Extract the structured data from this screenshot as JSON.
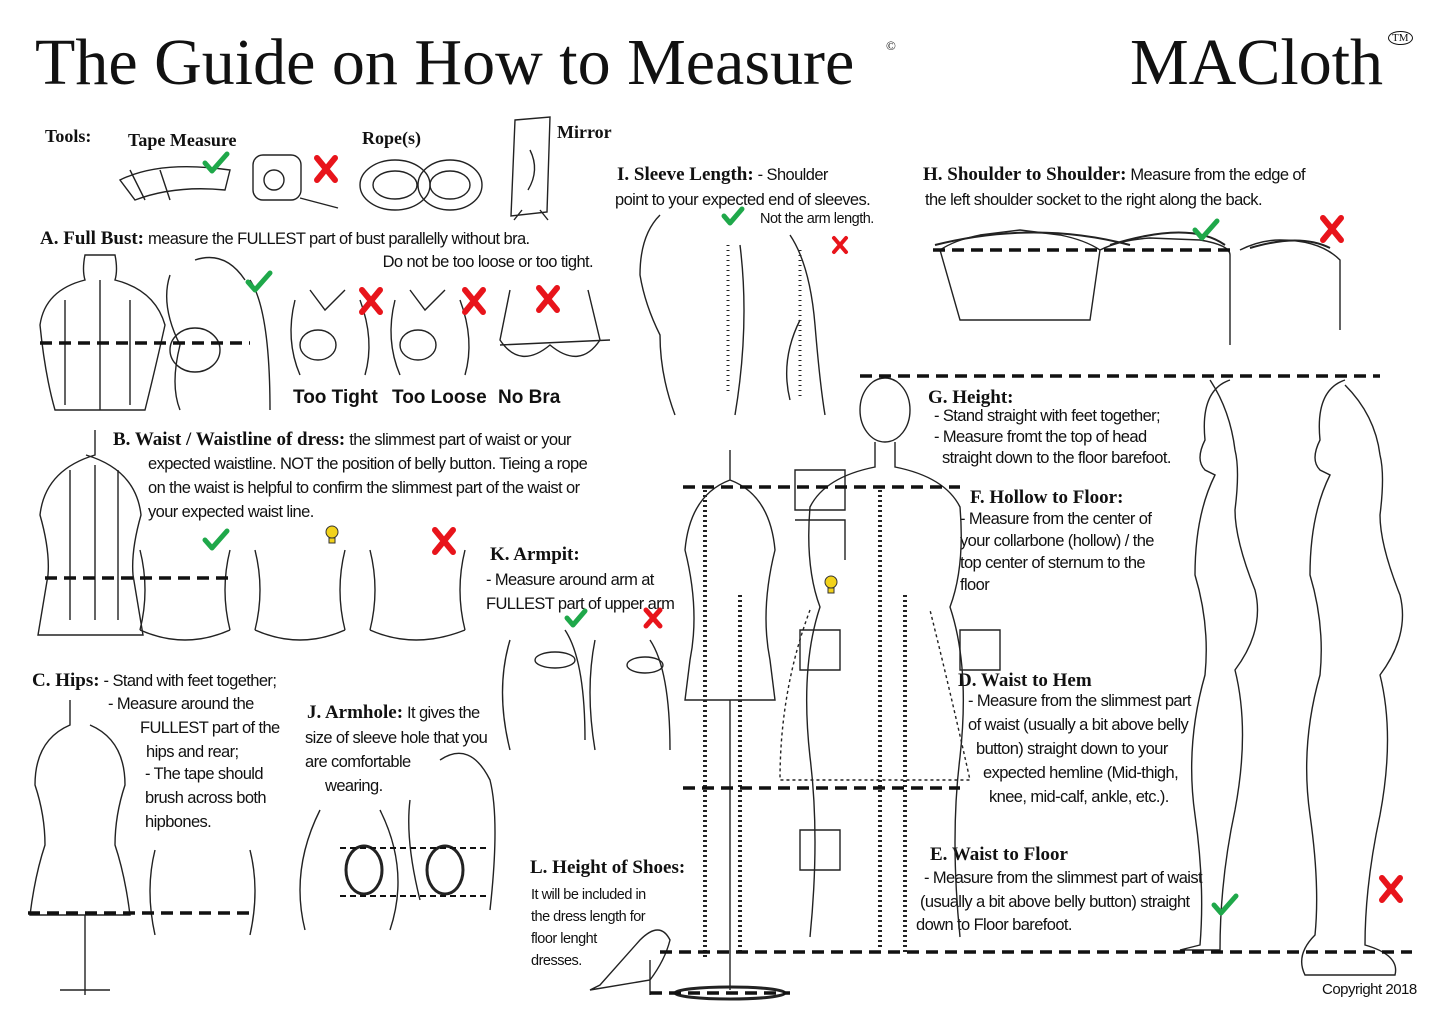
{
  "header": {
    "title": "The Guide on How to Measure",
    "copyright_mark": "©",
    "brand": "MACloth",
    "trademark": "TM"
  },
  "tools": {
    "label": "Tools:",
    "items": [
      {
        "label": "Tape Measure",
        "status": "check"
      },
      {
        "label": "Rope(s)"
      },
      {
        "label": "Mirror"
      }
    ]
  },
  "sections": {
    "a": {
      "heading": "A. Full Bust:",
      "text1": " measure the FULLEST part of bust parallelly without bra.",
      "text2": "Do not be too loose or too tight.",
      "labels": [
        "Too Tight",
        "Too Loose",
        "No Bra"
      ]
    },
    "b": {
      "heading": "B. Waist / Waistline of dress:",
      "text1": " the slimmest part of waist or your",
      "lines": [
        "expected waistline. NOT the position of belly button. Tieing a rope",
        "on the waist is helpful to confirm the slimmest part of the waist or",
        "your expected waist line."
      ]
    },
    "c": {
      "heading": "C. Hips:",
      "text1": " - Stand with feet together;",
      "lines": [
        "- Measure around the",
        "FULLEST part of the",
        "hips and rear;",
        "- The tape should",
        "brush across both",
        "hipbones."
      ]
    },
    "d": {
      "heading": "D. Waist to Hem",
      "lines": [
        "- Measure from the slimmest part",
        "of waist (usually a  bit  above belly",
        "button) straight down to your",
        "expected hemline (Mid-thigh,",
        "knee, mid-calf, ankle, etc.)."
      ]
    },
    "e": {
      "heading": "E. Waist to Floor",
      "lines": [
        "- Measure from the slimmest part of waist",
        "(usually a  bit  above belly button) straight",
        "down to Floor barefoot."
      ]
    },
    "f": {
      "heading": "F. Hollow to Floor:",
      "lines": [
        "- Measure from the center of",
        "your collarbone (hollow) / the",
        "top center of sternum to the",
        "floor"
      ]
    },
    "g": {
      "heading": "G. Height:",
      "lines": [
        "- Stand straight with feet together;",
        "- Measure fromt the top of head",
        "straight down to the  floor barefoot."
      ]
    },
    "h": {
      "heading": "H. Shoulder to Shoulder:",
      "text1": " Measure from the edge of",
      "text2": "the left shoulder socket to the right along the back."
    },
    "i": {
      "heading": "I. Sleeve Length:",
      "text1": " - Shoulder",
      "text2": "point to your expected end of sleeves.",
      "note": "Not the arm length."
    },
    "j": {
      "heading": "J. Armhole:",
      "text1": " It gives the",
      "lines": [
        "size of sleeve hole that you",
        "are comfortable",
        "wearing."
      ]
    },
    "k": {
      "heading": "K. Armpit:",
      "lines": [
        "- Measure around arm at",
        "FULLEST part of upper arm"
      ]
    },
    "l": {
      "heading": "L. Height of Shoes:",
      "lines": [
        "It will be included in",
        "the dress length for",
        "floor lenght",
        "dresses."
      ]
    }
  },
  "footer": {
    "copyright": "Copyright 2018"
  },
  "colors": {
    "check": "#1fa84a",
    "cross": "#e8141b",
    "bulb": "#f2d21b",
    "line": "#111111"
  }
}
